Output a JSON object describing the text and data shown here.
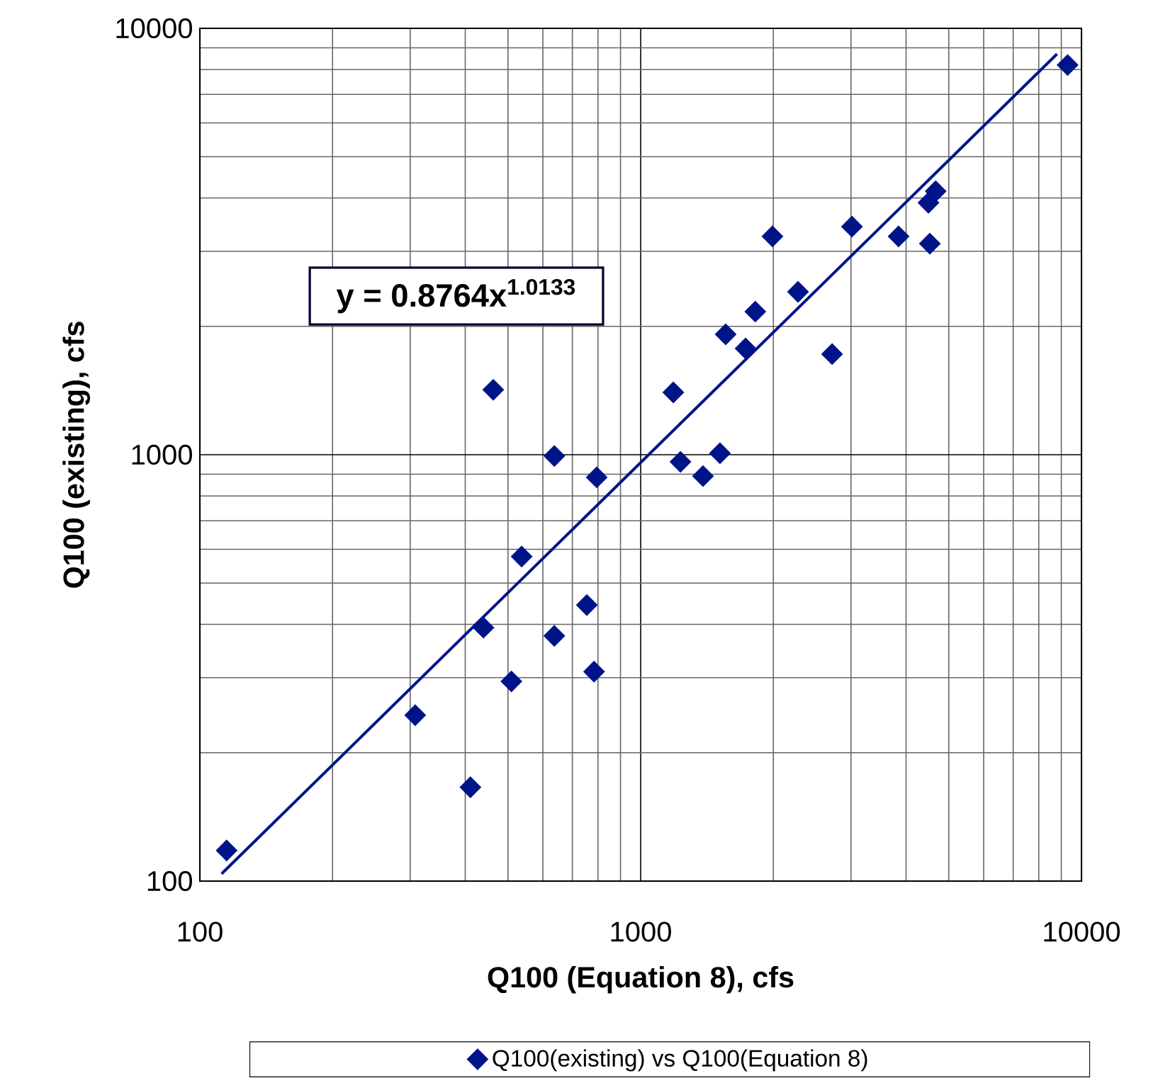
{
  "chart_data": {
    "type": "scatter",
    "xlabel": "Q100 (Equation 8), cfs",
    "ylabel": "Q100 (existing), cfs",
    "log": "xy",
    "grid": true,
    "legend": "bottom",
    "xlim": [
      100,
      10000
    ],
    "ylim": [
      100,
      10000
    ],
    "xticks": [
      100,
      1000,
      10000
    ],
    "yticks": [
      100,
      1000,
      10000
    ],
    "annotations": [
      "**y = 0.8764x$^{1.0133}$**"
    ],
    "series": [
      {
        "name": "Q100(existing) vs Q100(Equation 8)",
        "marker": "diamond",
        "color": "#001489",
        "x": [
          115,
          308,
          411,
          440,
          463,
          509,
          537,
          637,
          637,
          755,
          784,
          795,
          1186,
          1231,
          1385,
          1513,
          1559,
          1730,
          1820,
          1991,
          2275,
          2718,
          3015,
          3847,
          4496,
          4670,
          4529,
          9300
        ],
        "values": [
          118,
          245,
          166,
          393,
          1420,
          294,
          577,
          376,
          993,
          444,
          310,
          885,
          1400,
          962,
          891,
          1008,
          1916,
          1775,
          2166,
          3251,
          2410,
          1722,
          3428,
          3251,
          3899,
          4150,
          3126,
          8200
        ]
      },
      {
        "type": "line",
        "color": "#001489",
        "x": [
          112,
          8800
        ],
        "values": [
          104,
          8705
        ]
      }
    ]
  }
}
